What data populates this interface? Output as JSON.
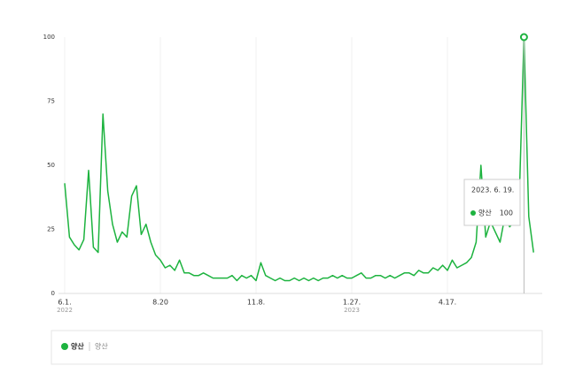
{
  "chart_data": {
    "type": "line",
    "categories": [
      "6.1.",
      null,
      null,
      null,
      null,
      null,
      null,
      null,
      null,
      null,
      null,
      null,
      null,
      null,
      null,
      null,
      null,
      null,
      null,
      null,
      "8.20",
      null,
      null,
      null,
      null,
      null,
      null,
      null,
      null,
      null,
      null,
      null,
      null,
      null,
      null,
      null,
      null,
      null,
      null,
      null,
      "11.8.",
      null,
      null,
      null,
      null,
      null,
      null,
      null,
      null,
      null,
      null,
      null,
      null,
      null,
      null,
      null,
      null,
      null,
      null,
      null,
      "1.27.",
      null,
      null,
      null,
      null,
      null,
      null,
      null,
      null,
      null,
      null,
      null,
      null,
      null,
      null,
      null,
      null,
      null,
      null,
      null,
      "4.17.",
      null,
      null,
      null,
      null,
      null,
      null,
      null,
      null,
      null,
      null,
      null,
      null,
      null,
      null,
      null,
      null,
      null,
      null
    ],
    "x_sublabels": [
      "2022",
      null,
      null,
      null,
      null,
      null,
      null,
      null,
      null,
      null,
      null,
      null,
      null,
      null,
      null,
      null,
      null,
      null,
      null,
      null,
      null,
      null,
      null,
      null,
      null,
      null,
      null,
      null,
      null,
      null,
      null,
      null,
      null,
      null,
      null,
      null,
      null,
      null,
      null,
      null,
      null,
      null,
      null,
      null,
      null,
      null,
      null,
      null,
      null,
      null,
      null,
      null,
      null,
      null,
      null,
      null,
      null,
      null,
      null,
      null,
      "2023",
      null,
      null,
      null,
      null,
      null,
      null,
      null,
      null,
      null,
      null,
      null,
      null,
      null,
      null,
      null,
      null,
      null,
      null,
      null,
      null,
      null,
      null,
      null,
      null,
      null,
      null,
      null,
      null,
      null,
      null,
      null,
      null,
      null,
      null,
      null,
      null,
      null,
      null
    ],
    "series": [
      {
        "name": "양산",
        "color": "#1db33f",
        "keywords": [
          "양산"
        ],
        "values": [
          43,
          22,
          19,
          17,
          21,
          48,
          18,
          16,
          70,
          40,
          27,
          20,
          24,
          22,
          38,
          42,
          23,
          27,
          20,
          15,
          13,
          10,
          11,
          9,
          13,
          8,
          8,
          7,
          7,
          8,
          7,
          6,
          6,
          6,
          6,
          7,
          5,
          7,
          6,
          7,
          5,
          12,
          7,
          6,
          5,
          6,
          5,
          5,
          6,
          5,
          6,
          5,
          6,
          5,
          6,
          6,
          7,
          6,
          7,
          6,
          6,
          7,
          8,
          6,
          6,
          7,
          7,
          6,
          7,
          6,
          7,
          8,
          8,
          7,
          9,
          8,
          8,
          10,
          9,
          11,
          9,
          13,
          10,
          11,
          12,
          14,
          20,
          50,
          22,
          28,
          24,
          20,
          30,
          26,
          28,
          36,
          100,
          30,
          16
        ]
      }
    ],
    "ylim": [
      0,
      100
    ],
    "yticks": [
      0,
      25,
      50,
      75,
      100
    ],
    "tooltip": {
      "date": "2023. 6. 19.",
      "name": "양산",
      "value": 100,
      "index": 96
    }
  }
}
